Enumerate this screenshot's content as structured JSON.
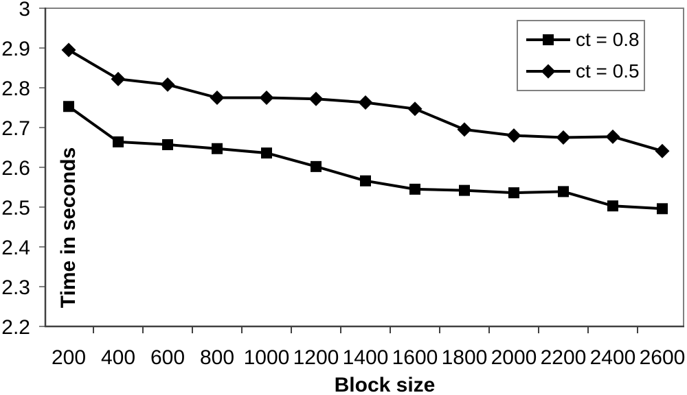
{
  "chart_data": {
    "type": "line",
    "title": "",
    "xlabel": "Block size",
    "ylabel": "Time in seconds",
    "categories": [
      200,
      400,
      600,
      800,
      1000,
      1200,
      1400,
      1600,
      1800,
      2000,
      2200,
      2400,
      2600
    ],
    "series": [
      {
        "name": "ct = 0.8",
        "marker": "square",
        "values": [
          2.753,
          2.664,
          2.657,
          2.647,
          2.636,
          2.602,
          2.566,
          2.545,
          2.542,
          2.536,
          2.539,
          2.503,
          2.496
        ]
      },
      {
        "name": "ct = 0.5",
        "marker": "diamond",
        "values": [
          2.895,
          2.822,
          2.808,
          2.775,
          2.775,
          2.772,
          2.763,
          2.747,
          2.695,
          2.68,
          2.675,
          2.677,
          2.641
        ]
      }
    ],
    "ylim": [
      2.2,
      3.0
    ],
    "ytick_step": 0.1,
    "ytick_labels": [
      "3",
      "2.9",
      "2.8",
      "2.7",
      "2.6",
      "2.5",
      "2.4",
      "2.3",
      "2.2"
    ],
    "grid": false,
    "legend_position": "top-right",
    "colors": {
      "series_line": "#000000",
      "marker_fill": "#000000",
      "axis_line": "#404040",
      "plot_border": "#808080",
      "text": "#000000",
      "background": "#ffffff"
    }
  }
}
